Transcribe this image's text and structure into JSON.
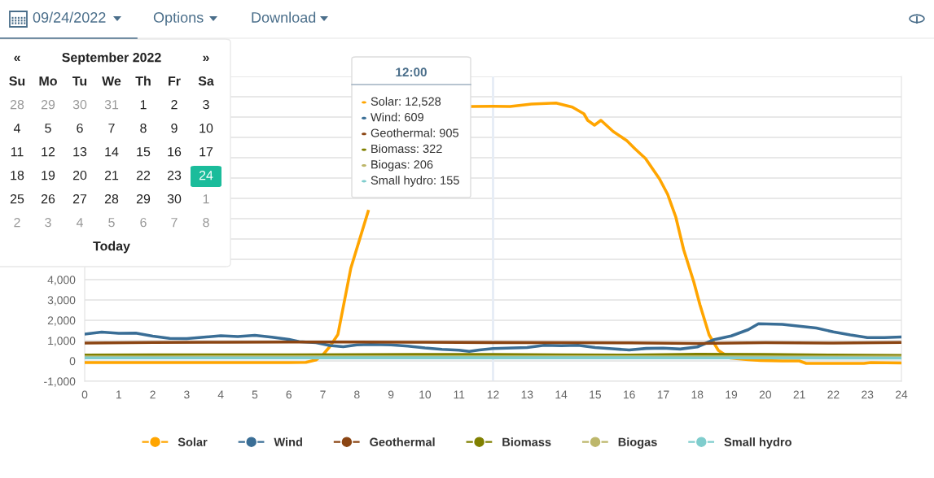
{
  "chart_data": {
    "type": "line",
    "xlim": [
      0,
      24
    ],
    "xticks": [
      0,
      1,
      2,
      3,
      4,
      5,
      6,
      7,
      8,
      9,
      10,
      11,
      12,
      13,
      14,
      15,
      16,
      17,
      18,
      19,
      20,
      21,
      22,
      23,
      24
    ],
    "ylim": [
      -1000,
      14000
    ],
    "yticks": [
      {
        "value": -1000,
        "label": "-1,000"
      },
      0,
      {
        "value": 1000,
        "label": "1,000"
      },
      {
        "value": 2000,
        "label": "2,000"
      },
      {
        "value": 3000,
        "label": "3,000"
      },
      {
        "value": 4000,
        "label": "4,000"
      },
      {
        "value": 5000,
        "label": null
      },
      {
        "value": 6000,
        "label": null
      },
      {
        "value": 7000,
        "label": null
      },
      {
        "value": 8000,
        "label": null
      },
      {
        "value": 9000,
        "label": null
      },
      {
        "value": 10000,
        "label": null
      },
      {
        "value": 11000,
        "label": null
      },
      {
        "value": 12000,
        "label": null
      },
      {
        "value": 13000,
        "label": null
      },
      {
        "value": 14000,
        "label": null
      }
    ],
    "grid": "y",
    "legend": "bottom",
    "marker": "none",
    "line_style": "solid",
    "ref_lines": [
      {
        "axis": "x",
        "value": 12,
        "color": "#e6ecf5"
      }
    ],
    "series": [
      {
        "name": "Solar",
        "color": "#ffa500",
        "x": [
          0,
          1,
          2,
          3,
          4,
          5,
          6,
          6.5,
          6.8,
          7.0,
          7.2,
          7.44,
          7.82,
          8.33,
          9.8,
          11.34,
          12,
          12.5,
          13.13,
          13.85,
          14.33,
          14.67,
          14.78,
          14.98,
          15.17,
          15.53,
          15.93,
          16.17,
          16.48,
          16.89,
          17.13,
          17.37,
          17.6,
          17.9,
          18.08,
          18.35,
          18.62,
          18.97,
          19.5,
          19.86,
          20.5,
          21.0,
          21.2,
          22.0,
          22.9,
          23.1,
          24
        ],
        "values": [
          -80,
          -80,
          -80,
          -80,
          -80,
          -80,
          -80,
          -70,
          50,
          300,
          700,
          1300,
          4560,
          7360,
          null,
          12520,
          12528,
          12520,
          12640,
          12690,
          12490,
          12160,
          11840,
          11600,
          11840,
          11290,
          10840,
          10440,
          9960,
          8960,
          8200,
          7080,
          5480,
          3880,
          2760,
          1280,
          520,
          140,
          60,
          20,
          0,
          0,
          -120,
          -120,
          -120,
          -80,
          -100
        ]
      },
      {
        "name": "Wind",
        "color": "#3a6e96",
        "x": [
          0,
          0.5,
          1,
          1.5,
          2,
          2.5,
          3,
          3.5,
          4,
          4.5,
          5,
          5.5,
          6,
          6.3,
          6.8,
          7.2,
          7.6,
          8,
          8.4,
          9,
          9.5,
          10,
          10.5,
          11,
          11.3,
          11.6,
          12,
          13,
          13.5,
          14,
          14.5,
          15,
          15.5,
          16,
          16.5,
          17,
          17.5,
          18,
          18.5,
          19,
          19.5,
          19.8,
          20.5,
          21,
          21.5,
          22,
          22.5,
          23,
          23.5,
          24
        ],
        "values": [
          1320,
          1420,
          1360,
          1370,
          1220,
          1110,
          1100,
          1170,
          1240,
          1200,
          1260,
          1170,
          1060,
          950,
          900,
          760,
          700,
          790,
          810,
          790,
          730,
          640,
          570,
          530,
          470,
          540,
          609,
          660,
          770,
          750,
          770,
          660,
          600,
          540,
          615,
          630,
          585,
          690,
          1050,
          1230,
          1540,
          1830,
          1800,
          1710,
          1620,
          1430,
          1280,
          1150,
          1150,
          1180
        ]
      },
      {
        "name": "Geothermal",
        "color": "#8b4513",
        "x": [
          0,
          2,
          4,
          6,
          8,
          10,
          12,
          14,
          16,
          18,
          20,
          22,
          24
        ],
        "values": [
          880,
          910,
          920,
          930,
          930,
          920,
          905,
          900,
          890,
          860,
          900,
          880,
          910
        ]
      },
      {
        "name": "Biomass",
        "color": "#808000",
        "x": [
          0,
          2,
          4,
          6,
          8,
          10,
          12,
          14,
          16,
          18,
          20,
          22,
          24
        ],
        "values": [
          290,
          300,
          300,
          300,
          310,
          320,
          322,
          300,
          290,
          330,
          320,
          290,
          270
        ]
      },
      {
        "name": "Biogas",
        "color": "#bdb76b",
        "x": [
          0,
          2,
          4,
          6,
          8,
          10,
          12,
          14,
          16,
          18,
          20,
          22,
          24
        ],
        "values": [
          200,
          200,
          205,
          205,
          205,
          206,
          206,
          205,
          205,
          205,
          200,
          200,
          200
        ]
      },
      {
        "name": "Small hydro",
        "color": "#7fcdcd",
        "x": [
          0,
          2,
          4,
          6,
          8,
          10,
          12,
          14,
          16,
          18,
          20,
          22,
          24
        ],
        "values": [
          150,
          150,
          150,
          150,
          155,
          155,
          155,
          155,
          155,
          150,
          150,
          145,
          140
        ]
      }
    ],
    "annotations": [
      "09/24/2022",
      "Options",
      "Download",
      "«",
      "September 2022",
      "»",
      "Su",
      "Mo",
      "Tu",
      "We",
      "Th",
      "Fr",
      "Sa",
      "28",
      "29",
      "30",
      "31",
      "1",
      "2",
      "3",
      "4",
      "5",
      "6",
      "7",
      "8",
      "9",
      "10",
      "11",
      "12",
      "13",
      "14",
      "15",
      "16",
      "17",
      "18",
      "19",
      "20",
      "21",
      "22",
      "23",
      "24",
      "25",
      "26",
      "27",
      "28",
      "29",
      "30",
      "1",
      "2",
      "3",
      "4",
      "5",
      "6",
      "7",
      "8",
      "Today",
      "12:00",
      "Solar: 12,528",
      "Wind: 609",
      "Geothermal: 905",
      "Biomass: 322",
      "Biogas: 206",
      "Small hydro: 155"
    ]
  }
}
